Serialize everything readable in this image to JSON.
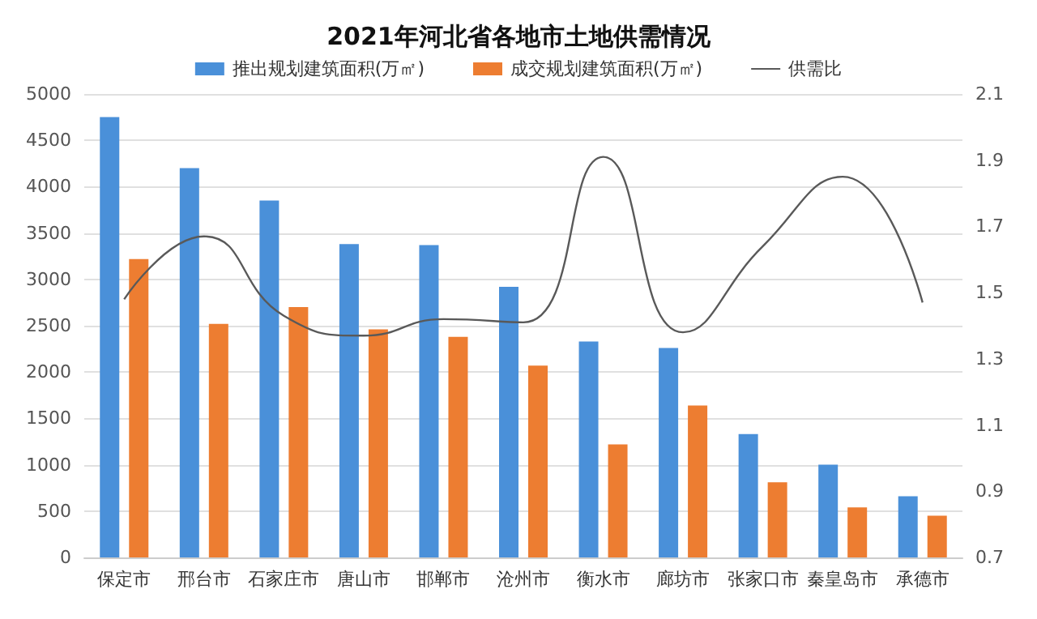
{
  "chart_data": {
    "type": "bar",
    "title": "2021年河北省各地市土地供需情况",
    "categories": [
      "保定市",
      "邢台市",
      "石家庄市",
      "唐山市",
      "邯郸市",
      "沧州市",
      "衡水市",
      "廊坊市",
      "张家口市",
      "秦皇岛市",
      "承德市"
    ],
    "series": [
      {
        "name": "推出规划建筑面积(万㎡)",
        "color": "#4a90d9",
        "values": [
          4750,
          4200,
          3850,
          3380,
          3370,
          2920,
          2330,
          2260,
          1330,
          1000,
          660
        ]
      },
      {
        "name": "成交规划建筑面积(万㎡)",
        "color": "#ed7d31",
        "values": [
          3220,
          2520,
          2700,
          2460,
          2380,
          2070,
          1220,
          1640,
          810,
          540,
          450
        ]
      },
      {
        "name": "供需比",
        "type": "line",
        "axis": "y2",
        "color": "#595959",
        "values": [
          1.48,
          1.67,
          1.43,
          1.37,
          1.42,
          1.41,
          1.91,
          1.38,
          1.64,
          1.85,
          1.47
        ]
      }
    ],
    "ylim": [
      0,
      5000
    ],
    "yticks": [
      0,
      500,
      1000,
      1500,
      2000,
      2500,
      3000,
      3500,
      4000,
      4500,
      5000
    ],
    "y2lim": [
      0.7,
      2.1
    ],
    "y2ticks": [
      0.7,
      0.9,
      1.1,
      1.3,
      1.5,
      1.7,
      1.9,
      2.1
    ],
    "grid": "y",
    "legend": "top",
    "marker": "none",
    "line_style": "solid"
  }
}
